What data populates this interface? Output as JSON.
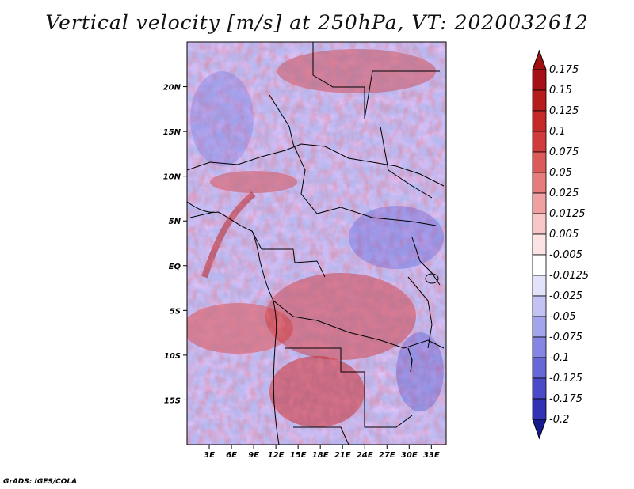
{
  "title": "Vertical velocity [m/s] at 250hPa, VT: 2020032612",
  "footer": "GrADS: IGES/COLA",
  "map": {
    "lon_range": [
      0,
      35
    ],
    "lat_range": [
      -20,
      25
    ],
    "lat_ticks": [
      {
        "lat": 20,
        "label": "20N"
      },
      {
        "lat": 15,
        "label": "15N"
      },
      {
        "lat": 10,
        "label": "10N"
      },
      {
        "lat": 5,
        "label": "5N"
      },
      {
        "lat": 0,
        "label": "EQ"
      },
      {
        "lat": -5,
        "label": "5S"
      },
      {
        "lat": -10,
        "label": "10S"
      },
      {
        "lat": -15,
        "label": "15S"
      }
    ],
    "lon_ticks": [
      {
        "lon": 3,
        "label": "3E"
      },
      {
        "lon": 6,
        "label": "6E"
      },
      {
        "lon": 9,
        "label": "9E"
      },
      {
        "lon": 12,
        "label": "12E"
      },
      {
        "lon": 15,
        "label": "15E"
      },
      {
        "lon": 18,
        "label": "18E"
      },
      {
        "lon": 21,
        "label": "21E"
      },
      {
        "lon": 24,
        "label": "24E"
      },
      {
        "lon": 27,
        "label": "27E"
      },
      {
        "lon": 30,
        "label": "30E"
      },
      {
        "lon": 33,
        "label": "33E"
      }
    ]
  },
  "colorbar": {
    "levels": [
      {
        "label": "0.175",
        "color": "#a50f15"
      },
      {
        "label": "0.15",
        "color": "#b71c1c"
      },
      {
        "label": "0.125",
        "color": "#c62828"
      },
      {
        "label": "0.1",
        "color": "#d13b3b"
      },
      {
        "label": "0.075",
        "color": "#dd5a5a"
      },
      {
        "label": "0.05",
        "color": "#e67c7c"
      },
      {
        "label": "0.025",
        "color": "#f0a0a0"
      },
      {
        "label": "0.0125",
        "color": "#f7c6c6"
      },
      {
        "label": "0.005",
        "color": "#fce4e4"
      },
      {
        "label": "-0.005",
        "color": "#ffffff"
      },
      {
        "label": "-0.0125",
        "color": "#e2e2fa"
      },
      {
        "label": "-0.025",
        "color": "#c3c3f3"
      },
      {
        "label": "-0.05",
        "color": "#a4a4ec"
      },
      {
        "label": "-0.075",
        "color": "#8585e3"
      },
      {
        "label": "-0.1",
        "color": "#6767d8"
      },
      {
        "label": "-0.125",
        "color": "#4b4bc9"
      },
      {
        "label": "-0.175",
        "color": "#3232b5"
      },
      {
        "label": "-0.2",
        "color": "#1f1f9e"
      }
    ],
    "top_color": "#a01010",
    "bottom_color": "#1a1a90"
  }
}
